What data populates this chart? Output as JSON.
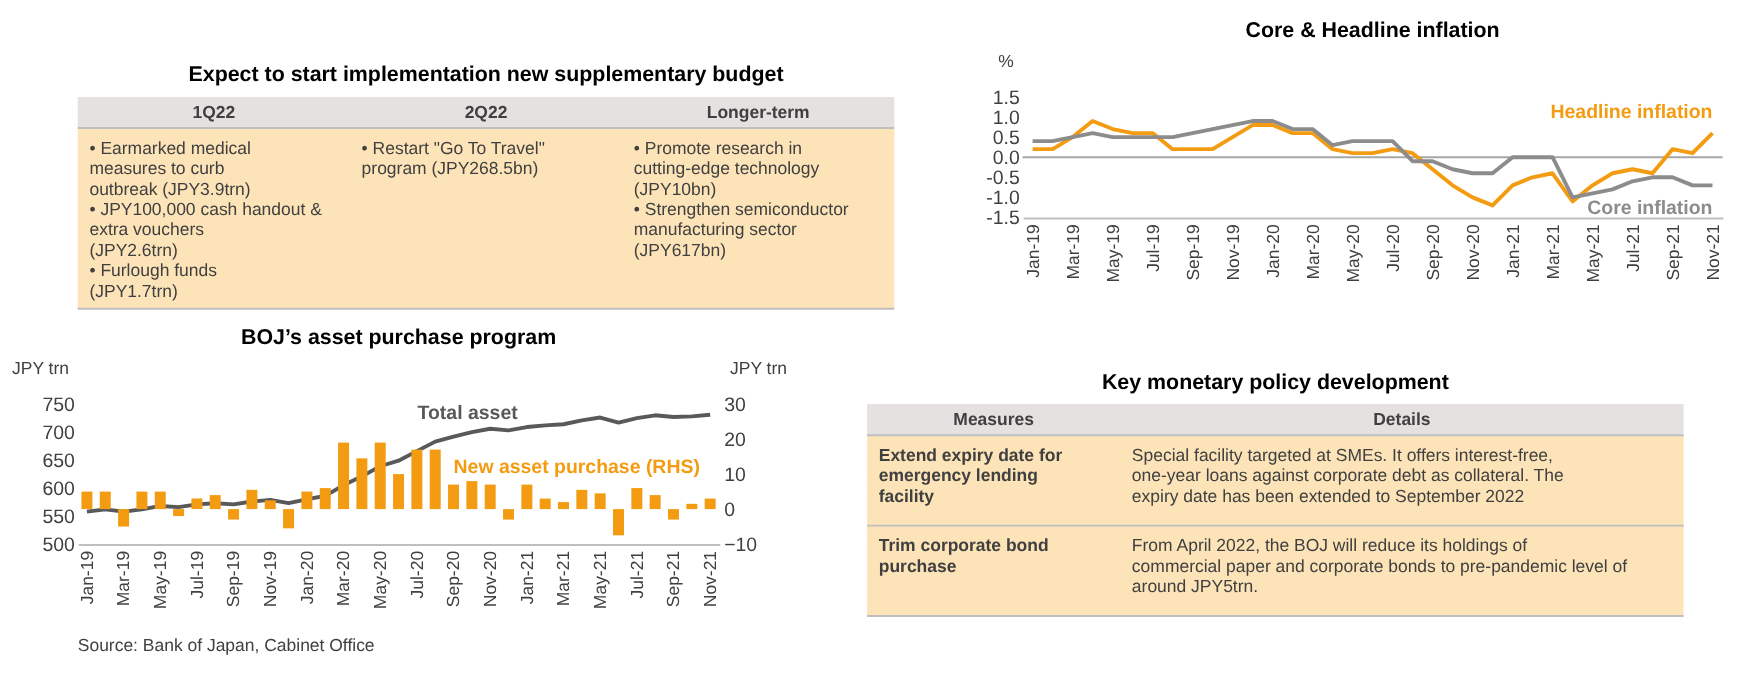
{
  "chart_data": [
    {
      "type": "other",
      "title": "Expect to start implementation new supplementary budget",
      "categories": [
        "1Q22",
        "2Q22",
        "Longer-term"
      ],
      "cell_labels": [
        [
          "•  Earmarked medical measures to curb outbreak (JPY3.9trn)\n•  JPY100,000 cash handout & extra vouchers (JPY2.6trn)\n•  Furlough funds (JPY1.7trn)",
          "•  Restart \"Go To Travel\" program (JPY268.5bn)",
          "•  Promote research in cutting-edge technology (JPY10bn)\n•  Strengthen semiconductor manufacturing sector (JPY617bn)"
        ]
      ]
    },
    {
      "type": "line",
      "title": "Core & Headline inflation",
      "ylabel": "%",
      "categories": [
        "Jan-19",
        null,
        "Mar-19",
        null,
        "May-19",
        null,
        "Jul-19",
        null,
        "Sep-19",
        null,
        "Nov-19",
        null,
        "Jan-20",
        null,
        "Mar-20",
        null,
        "May-20",
        null,
        "Jul-20",
        null,
        "Sep-20",
        null,
        "Nov-20",
        null,
        "Jan-21",
        null,
        "Mar-21",
        null,
        "May-21",
        null,
        "Jul-21",
        null,
        "Sep-21",
        null,
        "Nov-21"
      ],
      "series": [
        {
          "name": "Headline inflation",
          "color": "#f39c12",
          "values": [
            0.2,
            0.2,
            0.5,
            0.9,
            0.7,
            0.6,
            0.6,
            0.2,
            0.2,
            0.2,
            0.5,
            0.8,
            0.8,
            0.6,
            0.6,
            0.2,
            0.1,
            0.1,
            0.2,
            0.1,
            -0.3,
            -0.7,
            -1.0,
            -1.2,
            -0.7,
            -0.5,
            -0.4,
            -1.1,
            -0.7,
            -0.4,
            -0.3,
            -0.4,
            0.2,
            0.1,
            0.6
          ]
        },
        {
          "name": "Core inflation",
          "color": "#8c8c8c",
          "values": [
            0.4,
            0.4,
            0.5,
            0.6,
            0.5,
            0.5,
            0.5,
            0.5,
            0.6,
            0.7,
            0.8,
            0.9,
            0.9,
            0.7,
            0.7,
            0.3,
            0.4,
            0.4,
            0.4,
            -0.1,
            -0.1,
            -0.3,
            -0.4,
            -0.4,
            0.0,
            0.0,
            0.0,
            -1.0,
            -0.9,
            -0.8,
            -0.6,
            -0.5,
            -0.5,
            -0.7,
            -0.7
          ]
        }
      ],
      "ylim": [
        -1.5,
        1.5
      ],
      "yticks": [
        {
          "value": -1.5,
          "label": "-1.5"
        },
        {
          "value": -1,
          "label": "-1.0"
        },
        {
          "value": -0.5,
          "label": "-0.5"
        },
        {
          "value": 0,
          "label": "0.0"
        },
        {
          "value": 0.5,
          "label": "0.5"
        },
        {
          "value": 1,
          "label": "1.0"
        },
        {
          "value": 1.5,
          "label": "1.5"
        }
      ],
      "ref_lines": [
        {
          "axis": "y",
          "value": 0,
          "color": "#a6a6a6"
        }
      ]
    },
    {
      "type": "line",
      "title": "BOJ’s asset purchase program",
      "ylabel": "JPY trn",
      "y2label": "JPY trn",
      "categories": [
        "Jan-19",
        null,
        "Mar-19",
        null,
        "May-19",
        null,
        "Jul-19",
        null,
        "Sep-19",
        null,
        "Nov-19",
        null,
        "Jan-20",
        null,
        "Mar-20",
        null,
        "May-20",
        null,
        "Jul-20",
        null,
        "Sep-20",
        null,
        "Nov-20",
        null,
        "Jan-21",
        null,
        "Mar-21",
        null,
        "May-21",
        null,
        "Jul-21",
        null,
        "Sep-21",
        null,
        "Nov-21"
      ],
      "series": [
        {
          "name": "New asset purchase (RHS)",
          "type": "bar",
          "axis": "y2",
          "color": "#f39c12",
          "values": [
            5,
            5,
            -5,
            5,
            5,
            -2,
            3,
            4,
            -3,
            5.5,
            2.5,
            -5.5,
            5,
            6,
            19,
            14.5,
            19,
            10,
            17,
            17,
            7,
            8,
            7,
            -3,
            7,
            3,
            2,
            5.5,
            4.5,
            -7.5,
            6,
            4,
            -3,
            1.5,
            3
          ]
        },
        {
          "name": "Total asset",
          "type": "line",
          "axis": "y",
          "color": "#595959",
          "values": [
            558,
            562,
            558,
            562,
            568,
            566,
            571,
            573,
            571,
            576,
            579,
            573,
            580,
            586,
            605,
            621,
            639,
            649,
            666,
            683,
            692,
            700,
            706,
            703,
            709,
            712,
            714,
            721,
            726,
            717,
            725,
            730,
            727,
            728,
            731
          ]
        }
      ],
      "ylim": [
        500,
        750
      ],
      "yticks": [
        500,
        550,
        600,
        650,
        700,
        750
      ],
      "y2lim": [
        -10,
        30
      ],
      "y2ticks": [
        -10,
        0,
        10,
        20,
        30
      ]
    },
    {
      "type": "other",
      "title": "Key monetary policy development",
      "categories": [
        "Measures",
        "Details"
      ],
      "cell_labels": [
        [
          "Extend expiry date for emergency lending facility",
          "Special facility targeted at SMEs. It offers interest-free, one-year loans against corporate debt as collateral.  The expiry date has been extended to September 2022"
        ],
        [
          "Trim corporate bond purchase",
          "From April 2022, the BOJ will reduce its holdings of commercial paper and corporate bonds to pre-pandemic level of around JPY5trn."
        ]
      ]
    },
    {
      "type": "other",
      "annotations": [
        "Source: Bank of Japan, Cabinet Office"
      ]
    }
  ]
}
